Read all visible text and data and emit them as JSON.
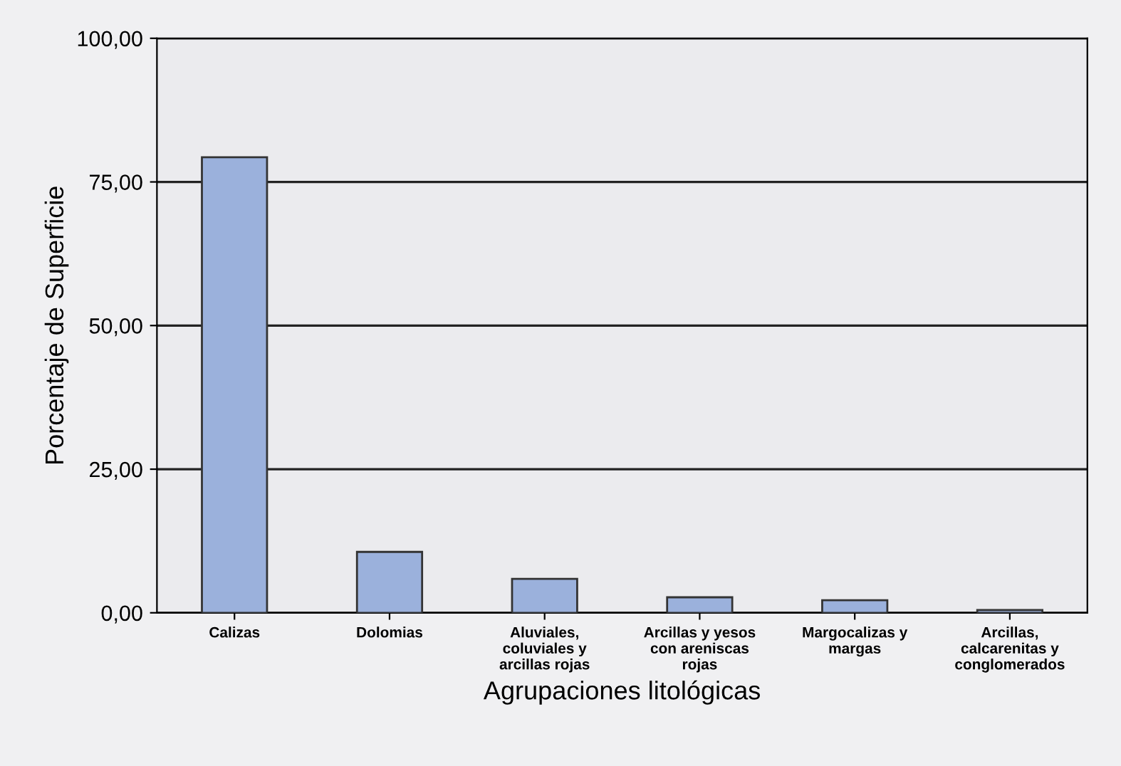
{
  "chart_data": {
    "type": "bar",
    "xlabel": "Agrupaciones litológicas",
    "ylabel": "Porcentaje de Superficie",
    "categories": [
      "Calizas",
      "Dolomias",
      "Aluviales,\ncoluviales y\narcillas rojas",
      "Arcillas y yesos\ncon areniscas\nrojas",
      "Margocalizas y\nmargas",
      "Arcillas,\ncalcarenitas y\nconglomerados"
    ],
    "values": [
      79.3,
      10.6,
      5.9,
      2.7,
      2.2,
      0.5
    ],
    "color": "#9bb1dc",
    "ylim": [
      0,
      100
    ],
    "yticks": [
      {
        "value": 0,
        "label": "0,00"
      },
      {
        "value": 25,
        "label": "25,00"
      },
      {
        "value": 50,
        "label": "50,00"
      },
      {
        "value": 75,
        "label": "75,00"
      },
      {
        "value": 100,
        "label": "100,00"
      }
    ],
    "grid": "y"
  }
}
